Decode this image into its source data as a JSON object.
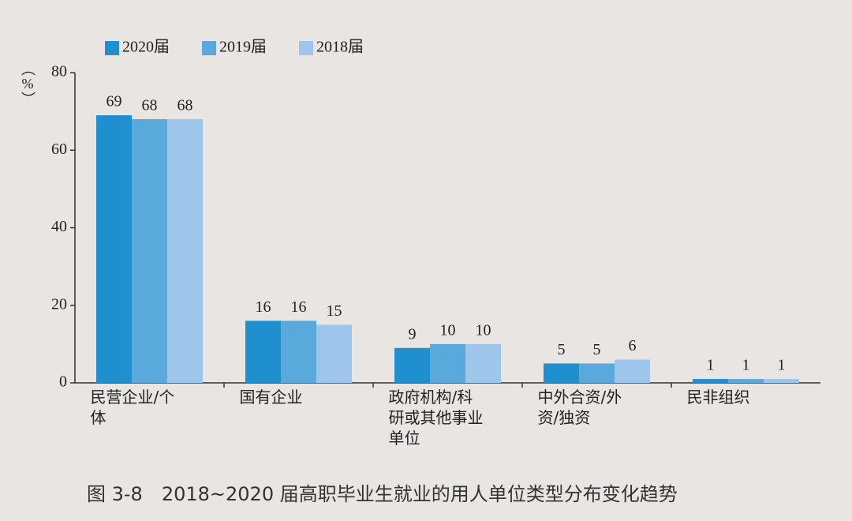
{
  "chart_data": {
    "type": "bar",
    "caption": "图 3-8　2018~2020 届高职毕业生就业的用人单位类型分布变化趋势",
    "y_label": "（%）",
    "categories": [
      "民营企业/个体",
      "国有企业",
      "政府机构/科研或其他事业单位",
      "中外合资/外资/独资",
      "民非组织"
    ],
    "series": [
      {
        "name": "2020届",
        "color": "#1f8fd0",
        "values": [
          69,
          16,
          9,
          5,
          1
        ]
      },
      {
        "name": "2019届",
        "color": "#5aa9dc",
        "values": [
          68,
          16,
          10,
          5,
          1
        ]
      },
      {
        "name": "2018届",
        "color": "#9dc6ea",
        "values": [
          68,
          15,
          10,
          6,
          1
        ]
      }
    ],
    "ylim": [
      0,
      80
    ],
    "yticks": [
      0,
      20,
      40,
      60,
      80
    ],
    "grid": false,
    "legend": "top-left"
  }
}
